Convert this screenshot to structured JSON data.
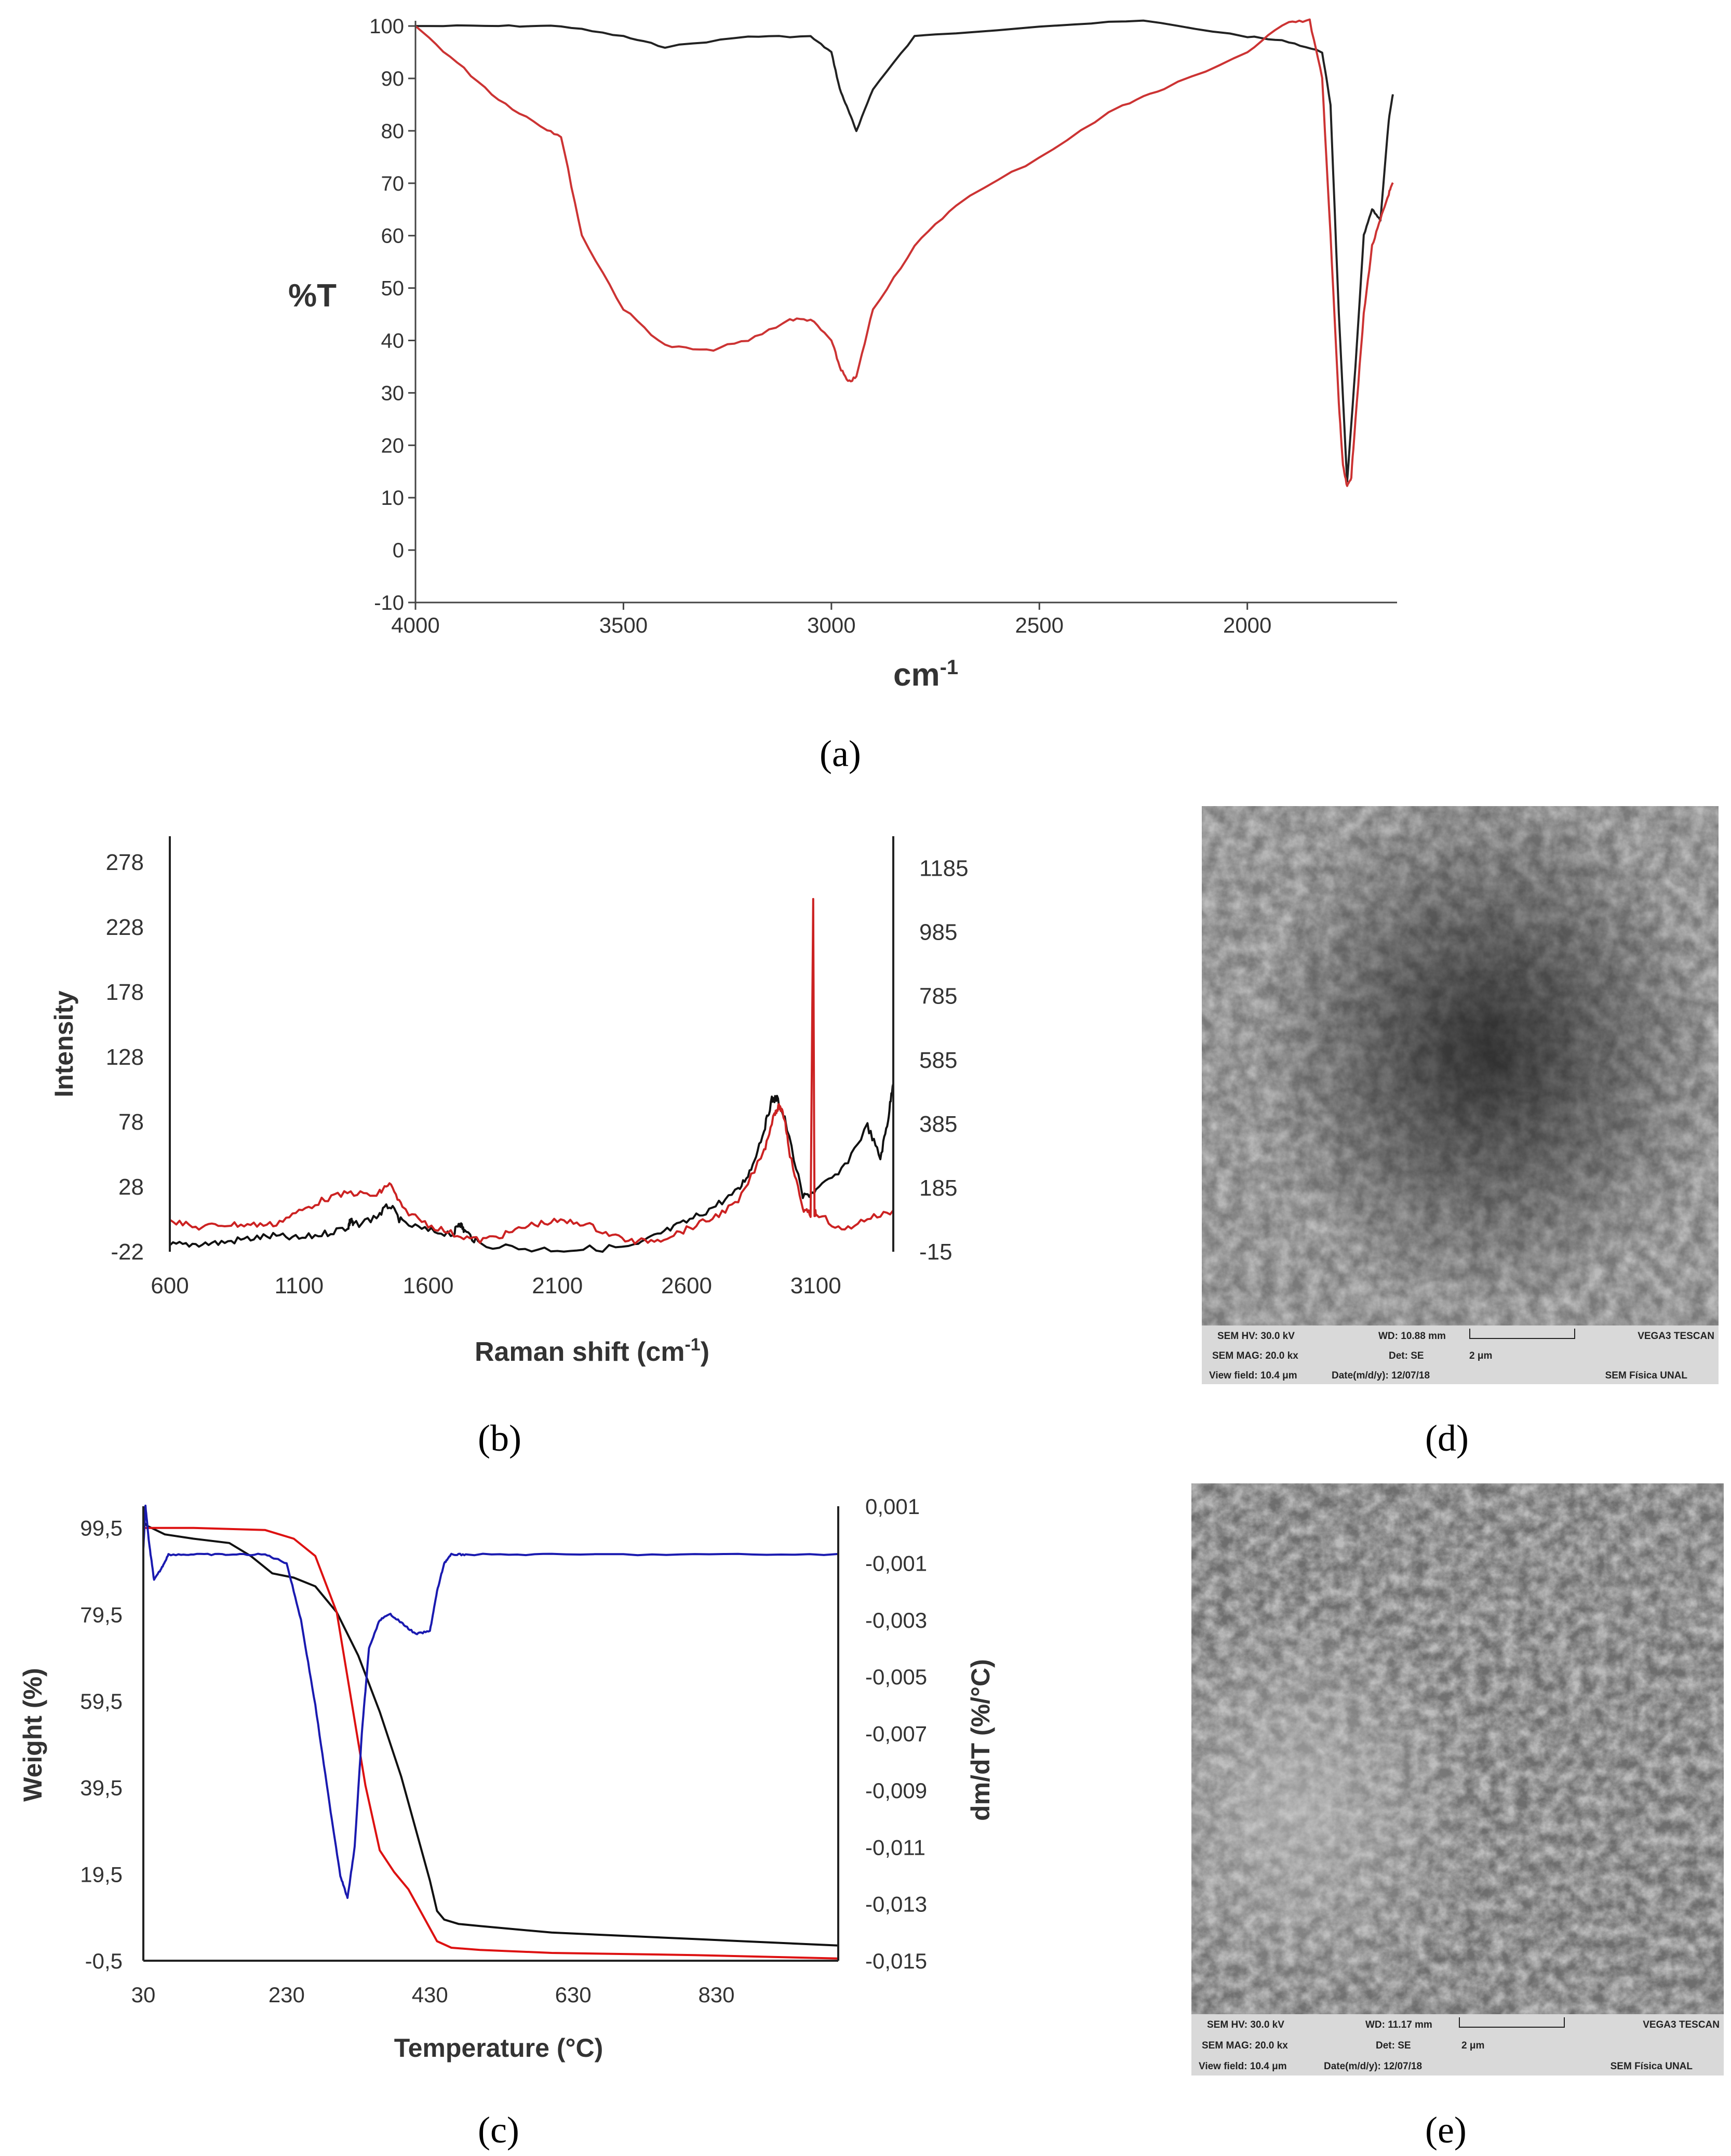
{
  "chart_data": [
    {
      "panel": "a",
      "type": "line",
      "xlabel": "cm",
      "xlabel_sup": "-1",
      "ylabel": "%T",
      "xlim": [
        4000,
        1640
      ],
      "ylim": [
        -10,
        101
      ],
      "xticks": [
        4000,
        3500,
        3000,
        2500,
        2000
      ],
      "yticks": [
        100,
        90,
        80,
        70,
        60,
        50,
        40,
        30,
        20,
        10,
        0,
        -10
      ],
      "series": [
        {
          "name": "black spectrum",
          "color": "#222222",
          "x": [
            4000,
            3800,
            3650,
            3500,
            3400,
            3200,
            3050,
            3000,
            2980,
            2960,
            2940,
            2900,
            2800,
            2500,
            2250,
            2000,
            1900,
            1820,
            1800,
            1780,
            1760,
            1740,
            1720,
            1700,
            1680,
            1660,
            1650
          ],
          "y": [
            100,
            100,
            100,
            98,
            96,
            98,
            98,
            95,
            88,
            84,
            80,
            88,
            98,
            100,
            101,
            98,
            97,
            95,
            85,
            45,
            13,
            35,
            60,
            65,
            63,
            82,
            87
          ]
        },
        {
          "name": "red spectrum",
          "color": "#cc3333",
          "x": [
            4000,
            3900,
            3800,
            3700,
            3650,
            3600,
            3500,
            3400,
            3300,
            3200,
            3100,
            3050,
            3000,
            2980,
            2960,
            2940,
            2900,
            2800,
            2700,
            2500,
            2300,
            2200,
            2000,
            1900,
            1850,
            1820,
            1800,
            1780,
            1770,
            1760,
            1750,
            1740,
            1720,
            1700,
            1680,
            1660,
            1650
          ],
          "y": [
            100,
            93,
            86,
            81,
            79,
            60,
            46,
            39,
            38,
            40,
            44,
            44,
            40,
            35,
            32,
            33,
            46,
            58,
            66,
            75,
            85,
            88,
            95,
            101,
            101,
            90,
            60,
            28,
            16,
            12,
            14,
            25,
            45,
            58,
            63,
            68,
            70
          ]
        }
      ]
    },
    {
      "panel": "b",
      "type": "line",
      "xlabel": "Raman shift (cm",
      "xlabel_sup": "-1",
      "xlabel_end": ")",
      "ylabel": "Intensity",
      "xlim": [
        600,
        3400
      ],
      "ylim": [
        -22,
        298
      ],
      "y2lim": [
        -15,
        1285
      ],
      "xticks": [
        600,
        1100,
        1600,
        2100,
        2600,
        3100
      ],
      "yticks": [
        278,
        228,
        178,
        128,
        78,
        28,
        -22
      ],
      "y2ticks": [
        1185,
        985,
        785,
        585,
        385,
        185,
        -15
      ],
      "series": [
        {
          "name": "black spectrum (left axis)",
          "color": "#111111",
          "axis": "left",
          "x": [
            600,
            700,
            800,
            900,
            1000,
            1100,
            1200,
            1290,
            1300,
            1310,
            1400,
            1450,
            1500,
            1600,
            1700,
            1720,
            1740,
            1800,
            2000,
            2200,
            2400,
            2500,
            2600,
            2700,
            2800,
            2850,
            2900,
            2930,
            2950,
            2980,
            3050,
            3100,
            3200,
            3300,
            3350,
            3380,
            3400
          ],
          "y": [
            -17,
            -16,
            -15,
            -12,
            -10,
            -12,
            -8,
            -3,
            3,
            -2,
            5,
            14,
            0,
            -6,
            -8,
            1,
            -6,
            -16,
            -20,
            -20,
            -18,
            -8,
            1,
            12,
            25,
            42,
            72,
            95,
            96,
            80,
            20,
            25,
            40,
            75,
            50,
            80,
            110
          ]
        },
        {
          "name": "red spectrum (right axis)",
          "color": "#cc2222",
          "axis": "right",
          "x": [
            600,
            700,
            800,
            900,
            1000,
            1100,
            1200,
            1300,
            1400,
            1450,
            1500,
            1600,
            1700,
            1800,
            1900,
            2000,
            2100,
            2200,
            2300,
            2400,
            2500,
            2600,
            2700,
            2800,
            2900,
            2940,
            2960,
            2980,
            3000,
            3050,
            3080,
            3090,
            3095,
            3100,
            3200,
            3300,
            3400
          ],
          "y": [
            85,
            60,
            70,
            70,
            70,
            110,
            150,
            170,
            160,
            200,
            120,
            70,
            40,
            20,
            40,
            70,
            80,
            75,
            40,
            15,
            25,
            55,
            90,
            140,
            300,
            420,
            440,
            400,
            290,
            120,
            100,
            1080,
            100,
            110,
            50,
            90,
            110
          ]
        }
      ]
    },
    {
      "panel": "c",
      "type": "line",
      "xlabel": "Temperature (°C)",
      "ylabel": "Weight (%)",
      "y2label": "dm/dT (%/°C)",
      "xlim": [
        30,
        1000
      ],
      "ylim": [
        -0.5,
        104.5
      ],
      "y2lim": [
        -0.015,
        0.001
      ],
      "xticks": [
        30,
        230,
        430,
        630,
        830
      ],
      "yticks": [
        "99,5",
        "79,5",
        "59,5",
        "39,5",
        "19,5",
        "-0,5"
      ],
      "y2ticks": [
        "0,001",
        "-0,001",
        "-0,003",
        "-0,005",
        "-0,007",
        "-0,009",
        "-0,011",
        "-0,013",
        "-0,015"
      ],
      "series": [
        {
          "name": "black weight curve",
          "color": "#111111",
          "axis": "left",
          "x": [
            30,
            35,
            60,
            100,
            150,
            180,
            210,
            240,
            270,
            300,
            330,
            360,
            390,
            410,
            430,
            440,
            450,
            470,
            500,
            600,
            800,
            1000
          ],
          "y": [
            101,
            100,
            98,
            97,
            96,
            93,
            89,
            88,
            86,
            80,
            70,
            57,
            42,
            30,
            18,
            11,
            9,
            8,
            7.5,
            6,
            4.5,
            3
          ]
        },
        {
          "name": "red weight curve",
          "color": "#dd1111",
          "axis": "left",
          "x": [
            30,
            100,
            200,
            240,
            270,
            300,
            320,
            340,
            360,
            380,
            400,
            420,
            440,
            460,
            500,
            600,
            800,
            1000
          ],
          "y": [
            99.5,
            99.5,
            99,
            97,
            93,
            80,
            60,
            40,
            25,
            20,
            16,
            10,
            4,
            2.5,
            2,
            1.3,
            0.8,
            0
          ]
        },
        {
          "name": "blue derivative curve",
          "color": "#1a1ab0",
          "axis": "right",
          "x": [
            30,
            33,
            38,
            45,
            55,
            65,
            100,
            150,
            200,
            230,
            250,
            270,
            290,
            305,
            315,
            325,
            335,
            345,
            360,
            375,
            390,
            410,
            430,
            440,
            450,
            460,
            480,
            600,
            800,
            1000
          ],
          "y": [
            -0.0005,
            0.001,
            -0.0003,
            -0.0016,
            -0.0012,
            -0.0007,
            -0.0007,
            -0.0007,
            -0.0007,
            -0.001,
            -0.003,
            -0.006,
            -0.0095,
            -0.012,
            -0.0128,
            -0.011,
            -0.007,
            -0.004,
            -0.003,
            -0.0028,
            -0.0031,
            -0.0035,
            -0.0034,
            -0.002,
            -0.001,
            -0.0007,
            -0.0007,
            -0.0007,
            -0.0007,
            -0.0007
          ]
        }
      ]
    }
  ],
  "panels": {
    "a": "(a)",
    "b": "(b)",
    "c": "(c)",
    "d": "(d)",
    "e": "(e)"
  },
  "sem_d": {
    "hv": "SEM HV: 30.0 kV",
    "wd": "WD: 10.88 mm",
    "brand": "VEGA3 TESCAN",
    "mag": "SEM MAG: 20.0 kx",
    "det": "Det: SE",
    "scale": "2 μm",
    "view": "View field: 10.4 μm",
    "date": "Date(m/d/y): 12/07/18",
    "lab": "SEM Física UNAL"
  },
  "sem_e": {
    "hv": "SEM HV: 30.0 kV",
    "wd": "WD: 11.17 mm",
    "brand": "VEGA3 TESCAN",
    "mag": "SEM MAG: 20.0 kx",
    "det": "Det: SE",
    "scale": "2 μm",
    "view": "View field: 10.4 μm",
    "date": "Date(m/d/y): 12/07/18",
    "lab": "SEM Física UNAL"
  }
}
